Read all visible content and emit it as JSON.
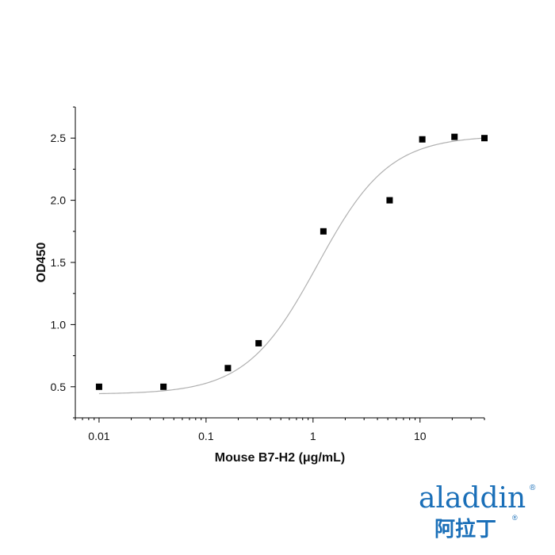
{
  "chart_data": {
    "type": "scatter",
    "xlabel": "Mouse B7-H2 (μg/mL)",
    "ylabel": "OD450",
    "x_scale": "log",
    "xlim": [
      0.006,
      40
    ],
    "ylim": [
      0.25,
      2.75
    ],
    "x_ticks": [
      0.01,
      0.1,
      1,
      10
    ],
    "x_tick_labels": [
      "0.01",
      "0.1",
      "1",
      "10"
    ],
    "y_ticks": [
      0.5,
      1.0,
      1.5,
      2.0,
      2.5
    ],
    "y_tick_labels": [
      "0.5",
      "1.0",
      "1.5",
      "2.0",
      "2.5"
    ],
    "grid": false,
    "series": [
      {
        "marker": "square",
        "color": "#000000",
        "points": [
          {
            "x": 0.01,
            "y": 0.5
          },
          {
            "x": 0.04,
            "y": 0.5
          },
          {
            "x": 0.16,
            "y": 0.65
          },
          {
            "x": 0.31,
            "y": 0.85
          },
          {
            "x": 1.25,
            "y": 1.75
          },
          {
            "x": 5.2,
            "y": 2.0
          },
          {
            "x": 10.5,
            "y": 2.49
          },
          {
            "x": 21,
            "y": 2.51
          },
          {
            "x": 40,
            "y": 2.5
          }
        ]
      }
    ],
    "fit_curve": {
      "model": "4PL",
      "color": "#b0b0b0",
      "bottom": 0.44,
      "top": 2.52,
      "ec50": 1.1,
      "hill": 1.3
    }
  },
  "logo": {
    "word": "aladdin",
    "cn": "阿拉丁",
    "registered": "®",
    "color": "#1a6fb8",
    "accent_color": "#e2a01b"
  }
}
